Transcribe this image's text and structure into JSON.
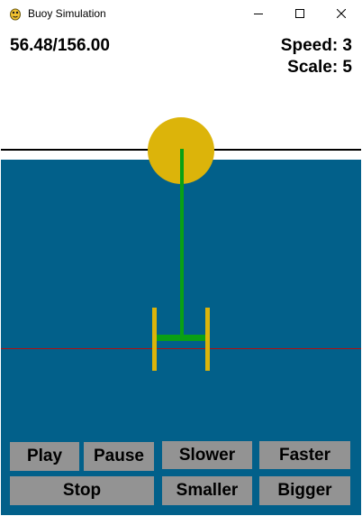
{
  "window": {
    "title": "Buoy Simulation",
    "icon": "pygame-snake-icon"
  },
  "titlebar_controls": {
    "minimize_icon": "minimize-icon",
    "maximize_icon": "maximize-icon",
    "close_icon": "close-icon"
  },
  "hud": {
    "time": "56.48/156.00",
    "speed": "Speed: 3",
    "scale": "Scale: 5"
  },
  "buttons": {
    "play": "Play",
    "pause": "Pause",
    "slower": "Slower",
    "faster": "Faster",
    "stop": "Stop",
    "smaller": "Smaller",
    "bigger": "Bigger"
  },
  "colors": {
    "water": "#02608a",
    "buoy": "#dcb40a",
    "tether": "#0aa014",
    "heave_plate_guides": "#dcb40a",
    "depth_line": "#b01010",
    "button_bg": "#939393"
  }
}
